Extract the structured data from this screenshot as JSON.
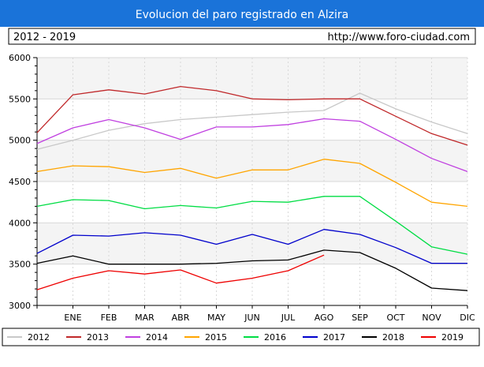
{
  "header": {
    "title": "Evolucion del paro registrado en Alzira",
    "period": "2012 - 2019",
    "url": "http://www.foro-ciudad.com"
  },
  "colors": {
    "title_bar": "#1a73d9",
    "band": "#f4f4f4",
    "grid": "#d8d8d8"
  },
  "chart_data": {
    "type": "line",
    "title": "Evolucion del paro registrado en Alzira",
    "categories": [
      "",
      "ENE",
      "FEB",
      "MAR",
      "ABR",
      "MAY",
      "JUN",
      "JUL",
      "AGO",
      "SEP",
      "OCT",
      "NOV",
      "DIC"
    ],
    "ylim": [
      3000,
      6000
    ],
    "yticks": [
      3000,
      3500,
      4000,
      4500,
      5000,
      5500,
      6000
    ],
    "grid": true,
    "legend_position": "bottom",
    "series": [
      {
        "name": "2012",
        "color": "#c8c8c8",
        "values": [
          4890,
          5000,
          5120,
          5200,
          5250,
          5280,
          5310,
          5340,
          5360,
          5570,
          5380,
          5220,
          5080
        ]
      },
      {
        "name": "2013",
        "color": "#c0282a",
        "values": [
          5090,
          5550,
          5610,
          5560,
          5650,
          5600,
          5500,
          5490,
          5500,
          5500,
          5290,
          5080,
          4940
        ]
      },
      {
        "name": "2014",
        "color": "#c040e0",
        "values": [
          4960,
          5150,
          5250,
          5150,
          5010,
          5160,
          5160,
          5190,
          5260,
          5230,
          5010,
          4780,
          4620
        ]
      },
      {
        "name": "2015",
        "color": "#ffa500",
        "values": [
          4620,
          4690,
          4680,
          4610,
          4660,
          4540,
          4640,
          4640,
          4770,
          4720,
          4490,
          4250,
          4200
        ]
      },
      {
        "name": "2016",
        "color": "#00dd44",
        "values": [
          4200,
          4280,
          4270,
          4170,
          4210,
          4180,
          4260,
          4250,
          4320,
          4320,
          4020,
          3710,
          3620
        ]
      },
      {
        "name": "2017",
        "color": "#0000cc",
        "values": [
          3630,
          3850,
          3840,
          3880,
          3850,
          3740,
          3860,
          3740,
          3920,
          3860,
          3700,
          3510,
          3510
        ]
      },
      {
        "name": "2018",
        "color": "#000000",
        "values": [
          3510,
          3600,
          3500,
          3500,
          3500,
          3510,
          3540,
          3550,
          3670,
          3640,
          3450,
          3210,
          3180
        ]
      },
      {
        "name": "2019",
        "color": "#ee0000",
        "values": [
          3190,
          3330,
          3420,
          3380,
          3430,
          3270,
          3330,
          3420,
          3610,
          null,
          null,
          null,
          null
        ]
      }
    ]
  }
}
